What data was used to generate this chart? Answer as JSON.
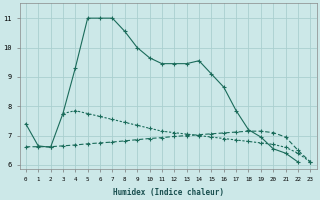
{
  "xlabel": "Humidex (Indice chaleur)",
  "x": [
    0,
    1,
    2,
    3,
    4,
    5,
    6,
    7,
    8,
    9,
    10,
    11,
    12,
    13,
    14,
    15,
    16,
    17,
    18,
    19,
    20,
    21,
    22,
    23
  ],
  "line1_solid": {
    "x": [
      0,
      1,
      2,
      3,
      4,
      5,
      6,
      7,
      8,
      9,
      10,
      11,
      12,
      13,
      14,
      15,
      16,
      17,
      18,
      19,
      20,
      21,
      22
    ],
    "y": [
      7.4,
      6.65,
      6.6,
      7.75,
      9.3,
      11.0,
      11.0,
      11.0,
      10.55,
      10.0,
      9.65,
      9.45,
      9.45,
      9.45,
      9.55,
      9.1,
      8.65,
      7.85,
      7.2,
      6.95,
      6.55,
      6.4,
      6.1
    ]
  },
  "line2_dotted": {
    "x": [
      3,
      4,
      5,
      6,
      7,
      8,
      9,
      10,
      11,
      12,
      13,
      14,
      15,
      16,
      17,
      18,
      19,
      20,
      21,
      22,
      23
    ],
    "y": [
      7.75,
      7.85,
      7.75,
      7.65,
      7.55,
      7.45,
      7.35,
      7.25,
      7.15,
      7.1,
      7.05,
      7.0,
      6.95,
      6.9,
      6.85,
      6.8,
      6.75,
      6.7,
      6.6,
      6.4,
      6.1
    ]
  },
  "line3_flat": {
    "x": [
      0,
      1,
      2,
      3,
      4,
      5,
      6,
      7,
      8,
      9,
      10,
      11,
      12,
      13,
      14,
      15,
      16,
      17,
      18,
      19,
      20,
      21,
      22,
      23
    ],
    "y": [
      6.62,
      6.62,
      6.62,
      6.65,
      6.68,
      6.72,
      6.75,
      6.78,
      6.82,
      6.86,
      6.9,
      6.93,
      6.97,
      7.0,
      7.03,
      7.06,
      7.09,
      7.12,
      7.15,
      7.15,
      7.1,
      6.95,
      6.5,
      6.1
    ]
  },
  "bg_color": "#cce8e8",
  "line_color": "#1a6b5a",
  "grid_color": "#aacfcf",
  "ylim": [
    5.85,
    11.5
  ],
  "yticks": [
    6,
    7,
    8,
    9,
    10,
    11
  ],
  "xticks": [
    0,
    1,
    2,
    3,
    4,
    5,
    6,
    7,
    8,
    9,
    10,
    11,
    12,
    13,
    14,
    15,
    16,
    17,
    18,
    19,
    20,
    21,
    22,
    23
  ]
}
